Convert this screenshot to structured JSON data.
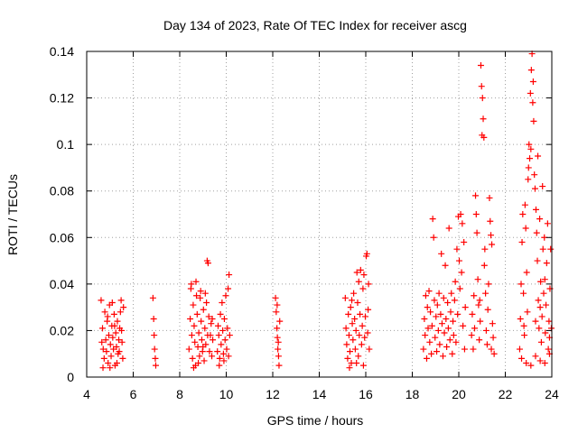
{
  "chart_data": {
    "type": "scatter",
    "title": "Day 134 of 2023, Rate Of TEC Index for receiver ascg",
    "xlabel": "GPS time / hours",
    "ylabel": "ROTI / TECUs",
    "xlim": [
      4,
      24
    ],
    "ylim": [
      0,
      0.14
    ],
    "xticks": [
      4,
      6,
      8,
      10,
      12,
      14,
      16,
      18,
      20,
      22,
      24
    ],
    "yticks": [
      0,
      0.02,
      0.04,
      0.06,
      0.08,
      0.1,
      0.12,
      0.14
    ],
    "xtick_labels": [
      "4",
      "6",
      "8",
      "10",
      "12",
      "14",
      "16",
      "18",
      "20",
      "22",
      "24"
    ],
    "ytick_labels": [
      "0",
      "0.02",
      "0.04",
      "0.06",
      "0.08",
      "0.1",
      "0.12",
      "0.14"
    ],
    "grid": true,
    "marker": "plus",
    "color": "#ff0000",
    "series": [
      {
        "points": [
          [
            4.62,
            0.033
          ],
          [
            4.68,
            0.021
          ],
          [
            4.71,
            0.012
          ],
          [
            4.75,
            0.008
          ],
          [
            4.78,
            0.028
          ],
          [
            4.82,
            0.016
          ],
          [
            4.85,
            0.011
          ],
          [
            4.88,
            0.024
          ],
          [
            4.92,
            0.006
          ],
          [
            4.95,
            0.018
          ],
          [
            4.98,
            0.031
          ],
          [
            5.02,
            0.014
          ],
          [
            5.05,
            0.009
          ],
          [
            5.08,
            0.022
          ],
          [
            5.12,
            0.017
          ],
          [
            5.15,
            0.012
          ],
          [
            5.18,
            0.027
          ],
          [
            5.22,
            0.005
          ],
          [
            5.25,
            0.019
          ],
          [
            5.28,
            0.013
          ],
          [
            5.32,
            0.024
          ],
          [
            5.35,
            0.01
          ],
          [
            5.38,
            0.016
          ],
          [
            5.42,
            0.021
          ],
          [
            5.45,
            0.028
          ],
          [
            5.48,
            0.033
          ],
          [
            5.52,
            0.015
          ],
          [
            5.55,
            0.008
          ],
          [
            5.58,
            0.03
          ],
          [
            4.7,
            0.004
          ],
          [
            4.9,
            0.026
          ],
          [
            5.1,
            0.032
          ],
          [
            5.3,
            0.006
          ],
          [
            5.5,
            0.02
          ],
          [
            4.65,
            0.015
          ],
          [
            5.0,
            0.004
          ],
          [
            5.2,
            0.022
          ],
          [
            5.4,
            0.011
          ],
          [
            6.85,
            0.034
          ],
          [
            6.88,
            0.025
          ],
          [
            6.9,
            0.018
          ],
          [
            6.92,
            0.012
          ],
          [
            6.95,
            0.008
          ],
          [
            6.97,
            0.005
          ],
          [
            8.4,
            0.012
          ],
          [
            8.45,
            0.025
          ],
          [
            8.48,
            0.038
          ],
          [
            8.52,
            0.018
          ],
          [
            8.55,
            0.008
          ],
          [
            8.58,
            0.031
          ],
          [
            8.62,
            0.022
          ],
          [
            8.65,
            0.015
          ],
          [
            8.68,
            0.005
          ],
          [
            8.72,
            0.035
          ],
          [
            8.75,
            0.027
          ],
          [
            8.78,
            0.013
          ],
          [
            8.82,
            0.019
          ],
          [
            8.85,
            0.009
          ],
          [
            8.88,
            0.034
          ],
          [
            8.92,
            0.024
          ],
          [
            8.95,
            0.016
          ],
          [
            8.98,
            0.011
          ],
          [
            9.02,
            0.029
          ],
          [
            9.05,
            0.007
          ],
          [
            9.08,
            0.021
          ],
          [
            9.12,
            0.014
          ],
          [
            9.15,
            0.032
          ],
          [
            9.18,
            0.05
          ],
          [
            9.22,
            0.049
          ],
          [
            9.25,
            0.026
          ],
          [
            9.28,
            0.011
          ],
          [
            9.32,
            0.018
          ],
          [
            9.35,
            0.023
          ],
          [
            9.38,
            0.009
          ],
          [
            9.42,
            0.016
          ],
          [
            8.5,
            0.04
          ],
          [
            8.7,
            0.041
          ],
          [
            8.9,
            0.037
          ],
          [
            9.1,
            0.036
          ],
          [
            8.6,
            0.004
          ],
          [
            8.8,
            0.006
          ],
          [
            9.0,
            0.013
          ],
          [
            9.2,
            0.018
          ],
          [
            9.4,
            0.025
          ],
          [
            9.62,
            0.011
          ],
          [
            9.65,
            0.022
          ],
          [
            9.68,
            0.018
          ],
          [
            9.72,
            0.008
          ],
          [
            9.75,
            0.027
          ],
          [
            9.78,
            0.014
          ],
          [
            9.82,
            0.032
          ],
          [
            9.85,
            0.02
          ],
          [
            9.88,
            0.01
          ],
          [
            9.92,
            0.025
          ],
          [
            9.95,
            0.016
          ],
          [
            9.98,
            0.035
          ],
          [
            10.02,
            0.012
          ],
          [
            10.05,
            0.021
          ],
          [
            10.08,
            0.038
          ],
          [
            10.12,
            0.044
          ],
          [
            10.15,
            0.018
          ],
          [
            9.7,
            0.005
          ],
          [
            9.9,
            0.007
          ],
          [
            10.1,
            0.009
          ],
          [
            12.12,
            0.034
          ],
          [
            12.15,
            0.028
          ],
          [
            12.18,
            0.021
          ],
          [
            12.2,
            0.017
          ],
          [
            12.22,
            0.012
          ],
          [
            12.25,
            0.009
          ],
          [
            12.27,
            0.005
          ],
          [
            12.3,
            0.024
          ],
          [
            12.19,
            0.031
          ],
          [
            12.24,
            0.015
          ],
          [
            15.12,
            0.034
          ],
          [
            15.15,
            0.021
          ],
          [
            15.18,
            0.014
          ],
          [
            15.22,
            0.008
          ],
          [
            15.25,
            0.027
          ],
          [
            15.28,
            0.018
          ],
          [
            15.32,
            0.011
          ],
          [
            15.35,
            0.03
          ],
          [
            15.38,
            0.006
          ],
          [
            15.42,
            0.023
          ],
          [
            15.45,
            0.016
          ],
          [
            15.48,
            0.036
          ],
          [
            15.52,
            0.025
          ],
          [
            15.55,
            0.012
          ],
          [
            15.58,
            0.02
          ],
          [
            15.62,
            0.045
          ],
          [
            15.65,
            0.032
          ],
          [
            15.68,
            0.009
          ],
          [
            15.72,
            0.018
          ],
          [
            15.75,
            0.027
          ],
          [
            15.78,
            0.046
          ],
          [
            15.82,
            0.014
          ],
          [
            15.85,
            0.022
          ],
          [
            15.88,
            0.038
          ],
          [
            15.92,
            0.044
          ],
          [
            15.95,
            0.017
          ],
          [
            15.98,
            0.026
          ],
          [
            16.02,
            0.052
          ],
          [
            16.05,
            0.053
          ],
          [
            16.08,
            0.019
          ],
          [
            16.12,
            0.04
          ],
          [
            16.15,
            0.012
          ],
          [
            15.3,
            0.004
          ],
          [
            15.6,
            0.006
          ],
          [
            15.9,
            0.005
          ],
          [
            16.1,
            0.029
          ],
          [
            15.4,
            0.033
          ],
          [
            15.7,
            0.041
          ],
          [
            18.48,
            0.012
          ],
          [
            18.52,
            0.025
          ],
          [
            18.55,
            0.018
          ],
          [
            18.58,
            0.035
          ],
          [
            18.62,
            0.008
          ],
          [
            18.65,
            0.03
          ],
          [
            18.68,
            0.021
          ],
          [
            18.72,
            0.037
          ],
          [
            18.75,
            0.015
          ],
          [
            18.78,
            0.028
          ],
          [
            18.82,
            0.01
          ],
          [
            18.85,
            0.022
          ],
          [
            18.88,
            0.068
          ],
          [
            18.92,
            0.06
          ],
          [
            18.95,
            0.033
          ],
          [
            18.98,
            0.017
          ],
          [
            19.02,
            0.026
          ],
          [
            19.05,
            0.011
          ],
          [
            19.08,
            0.031
          ],
          [
            19.12,
            0.02
          ],
          [
            19.15,
            0.036
          ],
          [
            19.18,
            0.014
          ],
          [
            19.22,
            0.027
          ],
          [
            19.25,
            0.053
          ],
          [
            19.28,
            0.023
          ],
          [
            19.32,
            0.009
          ],
          [
            19.35,
            0.034
          ],
          [
            19.38,
            0.019
          ],
          [
            19.42,
            0.048
          ],
          [
            19.45,
            0.025
          ],
          [
            19.48,
            0.013
          ],
          [
            19.52,
            0.032
          ],
          [
            19.55,
            0.021
          ],
          [
            19.58,
            0.064
          ],
          [
            19.62,
            0.016
          ],
          [
            19.65,
            0.028
          ],
          [
            19.68,
            0.036
          ],
          [
            19.72,
            0.01
          ],
          [
            19.75,
            0.024
          ],
          [
            19.78,
            0.018
          ],
          [
            19.82,
            0.033
          ],
          [
            19.85,
            0.041
          ],
          [
            19.88,
            0.015
          ],
          [
            19.92,
            0.055
          ],
          [
            19.95,
            0.027
          ],
          [
            19.98,
            0.069
          ],
          [
            20.02,
            0.05
          ],
          [
            20.05,
            0.038
          ],
          [
            20.08,
            0.07
          ],
          [
            20.12,
            0.045
          ],
          [
            20.15,
            0.066
          ],
          [
            20.18,
            0.022
          ],
          [
            20.22,
            0.058
          ],
          [
            20.25,
            0.012
          ],
          [
            20.28,
            0.03
          ],
          [
            20.55,
            0.018
          ],
          [
            20.58,
            0.027
          ],
          [
            20.62,
            0.012
          ],
          [
            20.65,
            0.035
          ],
          [
            20.68,
            0.021
          ],
          [
            20.72,
            0.078
          ],
          [
            20.75,
            0.07
          ],
          [
            20.78,
            0.062
          ],
          [
            20.82,
            0.042
          ],
          [
            20.85,
            0.031
          ],
          [
            20.88,
            0.016
          ],
          [
            20.92,
            0.024
          ],
          [
            20.95,
            0.134
          ],
          [
            20.98,
            0.125
          ],
          [
            21.02,
            0.12
          ],
          [
            21.05,
            0.111
          ],
          [
            21.08,
            0.103
          ],
          [
            21.12,
            0.055
          ],
          [
            21.15,
            0.036
          ],
          [
            21.18,
            0.02
          ],
          [
            21.22,
            0.014
          ],
          [
            21.25,
            0.029
          ],
          [
            21.28,
            0.04
          ],
          [
            21.32,
            0.077
          ],
          [
            21.35,
            0.067
          ],
          [
            21.38,
            0.061
          ],
          [
            21.42,
            0.057
          ],
          [
            21.45,
            0.023
          ],
          [
            21.48,
            0.017
          ],
          [
            21.52,
            0.01
          ],
          [
            20.9,
            0.033
          ],
          [
            21.0,
            0.104
          ],
          [
            21.1,
            0.048
          ],
          [
            21.4,
            0.012
          ],
          [
            22.62,
            0.012
          ],
          [
            22.65,
            0.025
          ],
          [
            22.68,
            0.04
          ],
          [
            22.72,
            0.058
          ],
          [
            22.75,
            0.07
          ],
          [
            22.78,
            0.036
          ],
          [
            22.82,
            0.018
          ],
          [
            22.85,
            0.074
          ],
          [
            22.88,
            0.064
          ],
          [
            22.92,
            0.045
          ],
          [
            22.95,
            0.028
          ],
          [
            22.98,
            0.085
          ],
          [
            23.02,
            0.1
          ],
          [
            23.05,
            0.094
          ],
          [
            23.08,
            0.122
          ],
          [
            23.12,
            0.132
          ],
          [
            23.15,
            0.139
          ],
          [
            23.18,
            0.118
          ],
          [
            23.22,
            0.11
          ],
          [
            23.25,
            0.087
          ],
          [
            23.28,
            0.081
          ],
          [
            23.32,
            0.072
          ],
          [
            23.35,
            0.062
          ],
          [
            23.38,
            0.05
          ],
          [
            23.42,
            0.033
          ],
          [
            23.45,
            0.021
          ],
          [
            23.48,
            0.068
          ],
          [
            23.52,
            0.041
          ],
          [
            23.55,
            0.015
          ],
          [
            23.58,
            0.026
          ],
          [
            23.62,
            0.055
          ],
          [
            23.65,
            0.036
          ],
          [
            23.68,
            0.06
          ],
          [
            23.72,
            0.019
          ],
          [
            23.75,
            0.031
          ],
          [
            23.78,
            0.049
          ],
          [
            23.82,
            0.066
          ],
          [
            23.85,
            0.012
          ],
          [
            23.88,
            0.024
          ],
          [
            23.92,
            0.038
          ],
          [
            23.95,
            0.055
          ],
          [
            23.98,
            0.021
          ],
          [
            22.7,
            0.008
          ],
          [
            22.9,
            0.006
          ],
          [
            23.1,
            0.005
          ],
          [
            23.3,
            0.009
          ],
          [
            23.5,
            0.007
          ],
          [
            23.7,
            0.006
          ],
          [
            23.9,
            0.01
          ],
          [
            23.0,
            0.09
          ],
          [
            23.2,
            0.127
          ],
          [
            23.4,
            0.095
          ],
          [
            23.6,
            0.082
          ],
          [
            23.1,
            0.098
          ],
          [
            22.8,
            0.022
          ],
          [
            23.3,
            0.024
          ],
          [
            23.5,
            0.03
          ],
          [
            23.7,
            0.042
          ],
          [
            23.9,
            0.017
          ]
        ]
      }
    ]
  }
}
